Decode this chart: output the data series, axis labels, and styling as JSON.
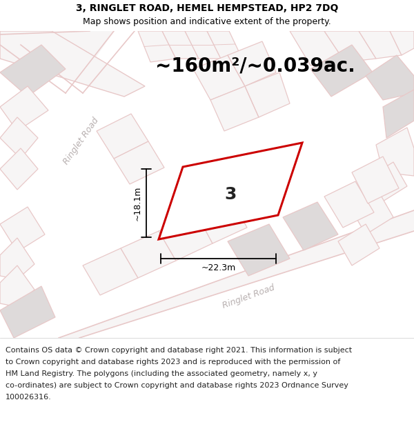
{
  "title_line1": "3, RINGLET ROAD, HEMEL HEMPSTEAD, HP2 7DQ",
  "title_line2": "Map shows position and indicative extent of the property.",
  "area_text": "~160m²/~0.039ac.",
  "width_label": "~22.3m",
  "height_label": "~18.1m",
  "property_number": "3",
  "footer_lines": [
    "Contains OS data © Crown copyright and database right 2021. This information is subject",
    "to Crown copyright and database rights 2023 and is reproduced with the permission of",
    "HM Land Registry. The polygons (including the associated geometry, namely x, y",
    "co-ordinates) are subject to Crown copyright and database rights 2023 Ordnance Survey",
    "100026316."
  ],
  "map_bg": "#f7f5f5",
  "property_fill": "#ffffff",
  "property_edge": "#cc0000",
  "road_outline": "#e8c8c8",
  "building_fill": "#dedada",
  "road_label_color": "#b8b0b0",
  "white": "#ffffff",
  "black": "#000000",
  "header_fontsize": 10,
  "subtitle_fontsize": 9,
  "area_fontsize": 20,
  "prop_num_fontsize": 18,
  "dim_fontsize": 9,
  "road_label_fontsize": 9,
  "footer_fontsize": 8
}
